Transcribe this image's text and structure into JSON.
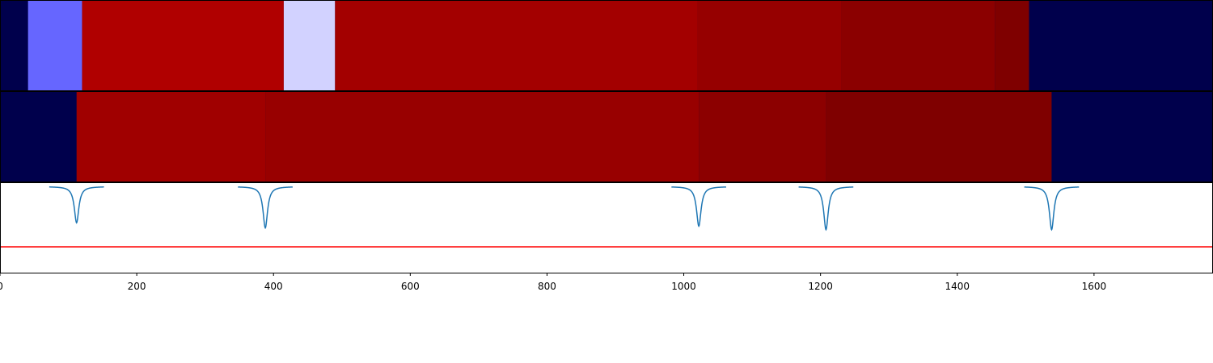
{
  "chart_data": [
    {
      "type": "heatmap",
      "row": "top",
      "xlim": [
        0,
        1774
      ],
      "background_color": "#00004c",
      "segments": [
        {
          "x0": 0,
          "x1": 41,
          "color": "#00004c"
        },
        {
          "x0": 41,
          "x1": 120,
          "color": "#6666ff"
        },
        {
          "x0": 120,
          "x1": 415,
          "color": "#b00000"
        },
        {
          "x0": 415,
          "x1": 490,
          "color": "#d2d2ff"
        },
        {
          "x0": 490,
          "x1": 1020,
          "color": "#a30000"
        },
        {
          "x0": 1020,
          "x1": 1230,
          "color": "#960000"
        },
        {
          "x0": 1230,
          "x1": 1455,
          "color": "#8b0000"
        },
        {
          "x0": 1455,
          "x1": 1505,
          "color": "#7f0000"
        },
        {
          "x0": 1505,
          "x1": 1774,
          "color": "#00004c"
        }
      ]
    },
    {
      "type": "heatmap",
      "row": "middle",
      "xlim": [
        0,
        1774
      ],
      "background_color": "#00004c",
      "segments": [
        {
          "x0": 0,
          "x1": 112,
          "color": "#00004c"
        },
        {
          "x0": 112,
          "x1": 388,
          "color": "#a00000"
        },
        {
          "x0": 388,
          "x1": 1022,
          "color": "#980000"
        },
        {
          "x0": 1022,
          "x1": 1208,
          "color": "#8c0000"
        },
        {
          "x0": 1208,
          "x1": 1538,
          "color": "#7f0000"
        },
        {
          "x0": 1538,
          "x1": 1774,
          "color": "#00004c"
        }
      ]
    },
    {
      "type": "line",
      "row": "bottom",
      "xlim": [
        0,
        1774
      ],
      "ylim": [
        -1.0,
        0.05
      ],
      "threshold": -0.7,
      "threshold_color": "#ff0000",
      "line_color": "#1f77b4",
      "dips": [
        {
          "x": 112,
          "depth": -0.42
        },
        {
          "x": 388,
          "depth": -0.48
        },
        {
          "x": 1022,
          "depth": -0.46
        },
        {
          "x": 1208,
          "depth": -0.5
        },
        {
          "x": 1538,
          "depth": -0.5
        }
      ],
      "dip_width": 4,
      "x_ticks": [
        "0",
        "200",
        "400",
        "600",
        "800",
        "1000",
        "1200",
        "1400",
        "1600"
      ]
    }
  ]
}
